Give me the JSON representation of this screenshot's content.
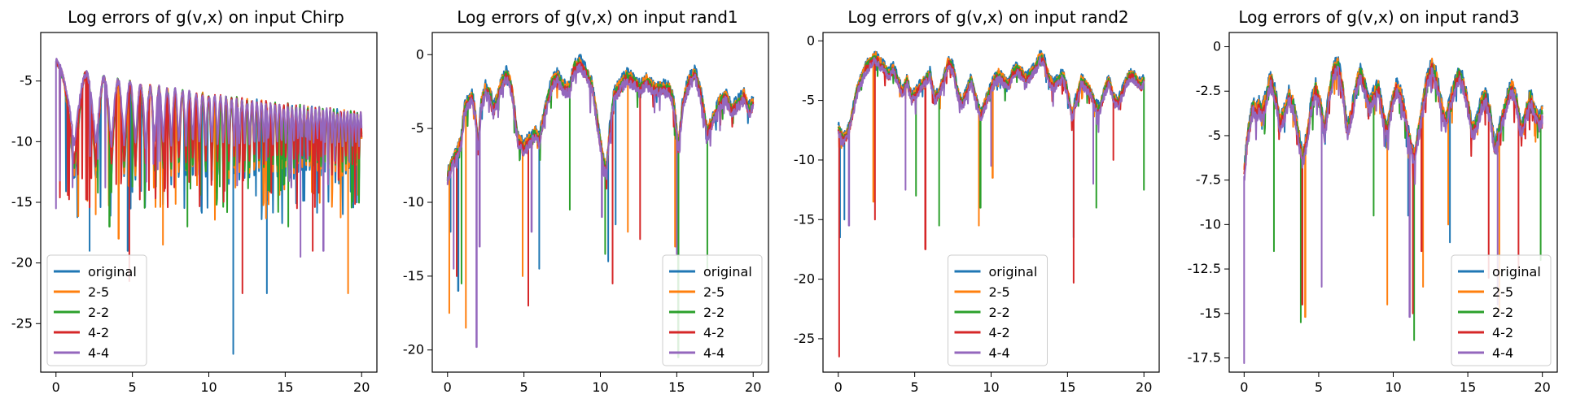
{
  "figure": {
    "legend_labels": [
      "original",
      "2-5",
      "2-2",
      "4-2",
      "4-4"
    ],
    "series_colors": [
      "#1f77b4",
      "#ff7f0e",
      "#2ca02c",
      "#d62728",
      "#9467bd"
    ]
  },
  "chart_data": [
    {
      "type": "line",
      "title": "Log errors of g(v,x) on input Chirp",
      "xlabel": "",
      "ylabel": "",
      "xlim": [
        -1,
        21
      ],
      "ylim": [
        -29,
        -1
      ],
      "xticks": [
        0,
        5,
        10,
        15,
        20
      ],
      "yticks": [
        -25,
        -20,
        -15,
        -10,
        -5
      ],
      "legend_loc": "lower-left",
      "grid": false,
      "signal": "chirp",
      "envelope_start": -3,
      "envelope_end": -7.5,
      "series": [
        {
          "name": "original",
          "floor": -13,
          "dips": [
            [
              2.2,
              -19
            ],
            [
              4.7,
              -19
            ],
            [
              11.6,
              -27.5
            ],
            [
              13.8,
              -22.5
            ],
            [
              19.3,
              -20.5
            ]
          ]
        },
        {
          "name": "2-5",
          "floor": -12.5,
          "dips": [
            [
              2.6,
              -16
            ],
            [
              4.1,
              -18
            ],
            [
              7.0,
              -18.5
            ],
            [
              19.1,
              -22.5
            ]
          ]
        },
        {
          "name": "2-2",
          "floor": -12,
          "dips": [
            [
              3.5,
              -17
            ],
            [
              8.6,
              -17
            ],
            [
              15.2,
              -17
            ]
          ]
        },
        {
          "name": "4-2",
          "floor": -11.5,
          "dips": [
            [
              4.8,
              -21.5
            ],
            [
              12.2,
              -22.5
            ],
            [
              16.8,
              -19
            ]
          ]
        },
        {
          "name": "4-4",
          "floor": -10,
          "dips": [
            [
              0.0,
              -15.5
            ],
            [
              16.0,
              -19.5
            ],
            [
              17.5,
              -19
            ]
          ]
        }
      ]
    },
    {
      "type": "line",
      "title": "Log errors of g(v,x) on input rand1",
      "xlabel": "",
      "ylabel": "",
      "xlim": [
        -1,
        21
      ],
      "ylim": [
        -21.5,
        1.5
      ],
      "xticks": [
        0,
        5,
        10,
        15,
        20
      ],
      "yticks": [
        -20,
        -15,
        -10,
        -5,
        0
      ],
      "legend_loc": "lower-right",
      "grid": false,
      "signal": "random",
      "base": [
        [
          0.0,
          -8
        ],
        [
          0.3,
          -7
        ],
        [
          0.6,
          -6.5
        ],
        [
          0.9,
          -5.5
        ],
        [
          1.1,
          -3.5
        ],
        [
          1.3,
          -3
        ],
        [
          1.6,
          -2.5
        ],
        [
          1.8,
          -3.5
        ],
        [
          2.0,
          -6
        ],
        [
          2.2,
          -3
        ],
        [
          2.5,
          -2
        ],
        [
          2.8,
          -2.5
        ],
        [
          3.0,
          -3.5
        ],
        [
          3.3,
          -2.5
        ],
        [
          3.6,
          -1.5
        ],
        [
          3.9,
          -1
        ],
        [
          4.2,
          -2
        ],
        [
          4.6,
          -5.5
        ],
        [
          5.0,
          -6
        ],
        [
          5.4,
          -5.5
        ],
        [
          5.7,
          -5
        ],
        [
          6.0,
          -5.5
        ],
        [
          6.3,
          -4
        ],
        [
          6.6,
          -2.5
        ],
        [
          6.9,
          -1.5
        ],
        [
          7.2,
          -1.2
        ],
        [
          7.6,
          -2
        ],
        [
          8.0,
          -2
        ],
        [
          8.3,
          -0.5
        ],
        [
          8.7,
          -0.3
        ],
        [
          9.1,
          -1
        ],
        [
          9.5,
          -2
        ],
        [
          9.9,
          -5
        ],
        [
          10.2,
          -7
        ],
        [
          10.4,
          -7.5
        ],
        [
          10.6,
          -5
        ],
        [
          10.9,
          -2.5
        ],
        [
          11.3,
          -1.8
        ],
        [
          11.7,
          -1.2
        ],
        [
          12.2,
          -1.5
        ],
        [
          12.6,
          -2
        ],
        [
          13.0,
          -1.5
        ],
        [
          13.5,
          -2
        ],
        [
          14.0,
          -2
        ],
        [
          14.5,
          -2
        ],
        [
          14.8,
          -3
        ],
        [
          15.1,
          -6
        ],
        [
          15.4,
          -3
        ],
        [
          15.8,
          -1.5
        ],
        [
          16.2,
          -1
        ],
        [
          16.6,
          -2.5
        ],
        [
          17.0,
          -5
        ],
        [
          17.4,
          -4
        ],
        [
          17.8,
          -3
        ],
        [
          18.2,
          -2.5
        ],
        [
          18.6,
          -3.5
        ],
        [
          19.0,
          -3
        ],
        [
          19.4,
          -2.5
        ],
        [
          19.7,
          -3.5
        ],
        [
          20.0,
          -3
        ]
      ],
      "series": [
        {
          "name": "original",
          "dips": [
            [
              0.2,
              -12
            ],
            [
              0.7,
              -16
            ],
            [
              6.0,
              -14.5
            ],
            [
              10.5,
              -14
            ],
            [
              11.0,
              -11.5
            ]
          ]
        },
        {
          "name": "2-5",
          "dips": [
            [
              0.1,
              -17.5
            ],
            [
              1.2,
              -18.5
            ],
            [
              4.9,
              -15
            ],
            [
              11.8,
              -12
            ],
            [
              14.9,
              -13
            ]
          ]
        },
        {
          "name": "2-2",
          "dips": [
            [
              0.3,
              -16
            ],
            [
              0.9,
              -15.5
            ],
            [
              8.0,
              -10.5
            ],
            [
              10.3,
              -13.5
            ],
            [
              15.1,
              -20.5
            ],
            [
              17.0,
              -14.5
            ]
          ]
        },
        {
          "name": "4-2",
          "dips": [
            [
              0.6,
              -15
            ],
            [
              5.3,
              -17
            ],
            [
              10.8,
              -15.5
            ],
            [
              12.6,
              -12.5
            ]
          ]
        },
        {
          "name": "4-4",
          "dips": [
            [
              0.4,
              -14.5
            ],
            [
              1.9,
              -19.8
            ],
            [
              2.1,
              -13
            ],
            [
              5.5,
              -12
            ],
            [
              10.1,
              -11
            ],
            [
              15.0,
              -13.5
            ]
          ]
        }
      ]
    },
    {
      "type": "line",
      "title": "Log errors of g(v,x) on input rand2",
      "xlabel": "",
      "ylabel": "",
      "xlim": [
        -1,
        21
      ],
      "ylim": [
        -27.8,
        0.7
      ],
      "xticks": [
        0,
        5,
        10,
        15,
        20
      ],
      "yticks": [
        -25,
        -20,
        -15,
        -10,
        -5,
        0
      ],
      "legend_loc": "lower-center",
      "grid": false,
      "signal": "random",
      "base": [
        [
          0.0,
          -7
        ],
        [
          0.3,
          -8
        ],
        [
          0.6,
          -7.5
        ],
        [
          0.9,
          -6
        ],
        [
          1.2,
          -4
        ],
        [
          1.5,
          -3
        ],
        [
          1.8,
          -2
        ],
        [
          2.1,
          -1.5
        ],
        [
          2.4,
          -1
        ],
        [
          2.7,
          -1.5
        ],
        [
          3.0,
          -2
        ],
        [
          3.3,
          -2.5
        ],
        [
          3.6,
          -2
        ],
        [
          3.9,
          -3
        ],
        [
          4.2,
          -4
        ],
        [
          4.5,
          -3
        ],
        [
          4.8,
          -4.5
        ],
        [
          5.1,
          -4
        ],
        [
          5.4,
          -3.5
        ],
        [
          5.7,
          -3
        ],
        [
          6.0,
          -2.5
        ],
        [
          6.3,
          -4.5
        ],
        [
          6.6,
          -4
        ],
        [
          6.9,
          -3
        ],
        [
          7.2,
          -1.5
        ],
        [
          7.5,
          -2
        ],
        [
          7.8,
          -4
        ],
        [
          8.1,
          -5
        ],
        [
          8.4,
          -4
        ],
        [
          8.7,
          -3
        ],
        [
          9.0,
          -4.5
        ],
        [
          9.3,
          -6
        ],
        [
          9.6,
          -5
        ],
        [
          9.9,
          -4
        ],
        [
          10.2,
          -3
        ],
        [
          10.5,
          -2.5
        ],
        [
          10.8,
          -3
        ],
        [
          11.1,
          -3.5
        ],
        [
          11.4,
          -2.5
        ],
        [
          11.7,
          -2
        ],
        [
          12.0,
          -2.5
        ],
        [
          12.3,
          -3
        ],
        [
          12.6,
          -2.5
        ],
        [
          12.9,
          -2
        ],
        [
          13.2,
          -1
        ],
        [
          13.5,
          -1.5
        ],
        [
          13.8,
          -3
        ],
        [
          14.1,
          -3.5
        ],
        [
          14.4,
          -3
        ],
        [
          14.7,
          -2.5
        ],
        [
          15.0,
          -4
        ],
        [
          15.3,
          -6
        ],
        [
          15.6,
          -4.5
        ],
        [
          15.9,
          -3
        ],
        [
          16.2,
          -3.5
        ],
        [
          16.5,
          -4
        ],
        [
          16.8,
          -5
        ],
        [
          17.1,
          -5.5
        ],
        [
          17.4,
          -4
        ],
        [
          17.7,
          -3
        ],
        [
          18.0,
          -4.5
        ],
        [
          18.3,
          -5
        ],
        [
          18.6,
          -4
        ],
        [
          18.9,
          -3
        ],
        [
          19.2,
          -2.5
        ],
        [
          19.5,
          -3
        ],
        [
          19.8,
          -3.5
        ],
        [
          20.0,
          -3
        ]
      ],
      "series": [
        {
          "name": "original",
          "dips": [
            [
              0.1,
              -16.5
            ],
            [
              0.4,
              -15
            ],
            [
              15.4,
              -16.5
            ]
          ]
        },
        {
          "name": "2-5",
          "dips": [
            [
              9.2,
              -15.5
            ],
            [
              10.1,
              -11.5
            ],
            [
              2.3,
              -13.5
            ]
          ]
        },
        {
          "name": "2-2",
          "dips": [
            [
              5.1,
              -13
            ],
            [
              6.6,
              -15.5
            ],
            [
              9.3,
              -14
            ],
            [
              16.9,
              -14
            ],
            [
              20.0,
              -12.5
            ]
          ]
        },
        {
          "name": "4-2",
          "dips": [
            [
              0.05,
              -26.5
            ],
            [
              2.4,
              -15
            ],
            [
              5.7,
              -17.5
            ],
            [
              15.4,
              -20.3
            ],
            [
              18.0,
              -10
            ]
          ]
        },
        {
          "name": "4-4",
          "dips": [
            [
              0.3,
              -16.5
            ],
            [
              0.7,
              -15.5
            ],
            [
              4.4,
              -12.5
            ],
            [
              10.0,
              -10.5
            ],
            [
              16.7,
              -12
            ]
          ]
        }
      ]
    },
    {
      "type": "line",
      "title": "Log errors of g(v,x) on input rand3",
      "xlabel": "",
      "ylabel": "",
      "xlim": [
        -1,
        21
      ],
      "ylim": [
        -18.3,
        0.8
      ],
      "xticks": [
        0,
        5,
        10,
        15,
        20
      ],
      "yticks": [
        -17.5,
        -15.0,
        -12.5,
        -10.0,
        -7.5,
        -5.0,
        -2.5,
        0.0
      ],
      "legend_loc": "lower-right",
      "grid": false,
      "signal": "random",
      "base": [
        [
          0.0,
          -7
        ],
        [
          0.2,
          -5
        ],
        [
          0.4,
          -4
        ],
        [
          0.6,
          -3
        ],
        [
          0.8,
          -3.5
        ],
        [
          1.0,
          -3
        ],
        [
          1.2,
          -3.5
        ],
        [
          1.5,
          -2.5
        ],
        [
          1.8,
          -1.5
        ],
        [
          2.1,
          -2.5
        ],
        [
          2.4,
          -4
        ],
        [
          2.7,
          -3.5
        ],
        [
          3.0,
          -2.5
        ],
        [
          3.3,
          -3
        ],
        [
          3.6,
          -4.5
        ],
        [
          3.9,
          -6
        ],
        [
          4.2,
          -5
        ],
        [
          4.5,
          -3
        ],
        [
          4.8,
          -2
        ],
        [
          5.1,
          -3
        ],
        [
          5.4,
          -4.5
        ],
        [
          5.7,
          -2.5
        ],
        [
          6.0,
          -1
        ],
        [
          6.3,
          -0.8
        ],
        [
          6.6,
          -2
        ],
        [
          6.9,
          -4.5
        ],
        [
          7.2,
          -3.5
        ],
        [
          7.5,
          -2
        ],
        [
          7.8,
          -1.2
        ],
        [
          8.1,
          -2
        ],
        [
          8.4,
          -3
        ],
        [
          8.7,
          -2.5
        ],
        [
          9.0,
          -2
        ],
        [
          9.3,
          -3.5
        ],
        [
          9.6,
          -4.5
        ],
        [
          9.9,
          -3
        ],
        [
          10.2,
          -2
        ],
        [
          10.5,
          -2.5
        ],
        [
          10.8,
          -3.5
        ],
        [
          11.1,
          -5
        ],
        [
          11.4,
          -6
        ],
        [
          11.7,
          -4.5
        ],
        [
          12.0,
          -3
        ],
        [
          12.3,
          -1.5
        ],
        [
          12.6,
          -0.8
        ],
        [
          12.9,
          -1.5
        ],
        [
          13.2,
          -3
        ],
        [
          13.5,
          -4
        ],
        [
          13.8,
          -3
        ],
        [
          14.1,
          -2
        ],
        [
          14.4,
          -1.2
        ],
        [
          14.7,
          -1.8
        ],
        [
          15.0,
          -3
        ],
        [
          15.3,
          -4.5
        ],
        [
          15.6,
          -4
        ],
        [
          15.9,
          -3
        ],
        [
          16.2,
          -2.5
        ],
        [
          16.5,
          -3.5
        ],
        [
          16.8,
          -5.5
        ],
        [
          17.1,
          -4.5
        ],
        [
          17.4,
          -3.5
        ],
        [
          17.7,
          -2.5
        ],
        [
          18.0,
          -2
        ],
        [
          18.3,
          -3
        ],
        [
          18.6,
          -4.5
        ],
        [
          18.9,
          -3.5
        ],
        [
          19.2,
          -2.5
        ],
        [
          19.5,
          -3.5
        ],
        [
          19.8,
          -4
        ],
        [
          20.0,
          -3.5
        ]
      ],
      "series": [
        {
          "name": "original",
          "dips": [
            [
              13.8,
              -11
            ],
            [
              11.0,
              -9.5
            ]
          ]
        },
        {
          "name": "2-5",
          "dips": [
            [
              4.1,
              -15.2
            ],
            [
              9.6,
              -14.5
            ],
            [
              12.0,
              -13.5
            ],
            [
              13.7,
              -10
            ],
            [
              17.1,
              -15
            ]
          ]
        },
        {
          "name": "2-2",
          "dips": [
            [
              2.0,
              -11.5
            ],
            [
              3.8,
              -15.5
            ],
            [
              8.7,
              -9.5
            ],
            [
              11.4,
              -16.5
            ],
            [
              19.9,
              -12
            ]
          ]
        },
        {
          "name": "4-2",
          "dips": [
            [
              3.9,
              -14.5
            ],
            [
              11.3,
              -15
            ],
            [
              11.9,
              -11.5
            ],
            [
              16.4,
              -13
            ],
            [
              18.4,
              -12.5
            ]
          ]
        },
        {
          "name": "4-4",
          "dips": [
            [
              0.0,
              -17.8
            ],
            [
              5.2,
              -13.5
            ],
            [
              11.1,
              -15.2
            ],
            [
              17.0,
              -14.5
            ]
          ]
        }
      ]
    }
  ]
}
